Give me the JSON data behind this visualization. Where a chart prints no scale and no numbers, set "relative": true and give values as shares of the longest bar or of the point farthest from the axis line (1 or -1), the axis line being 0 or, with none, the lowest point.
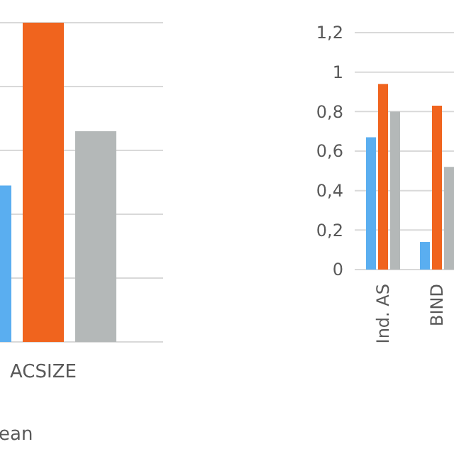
{
  "chart_data": [
    {
      "type": "bar",
      "categories": [
        "ACSIZE"
      ],
      "relative": true,
      "grid": true,
      "series": [
        {
          "color": "#5aaef0",
          "values": [
            0.49
          ]
        },
        {
          "color": "#f0641e",
          "values": [
            1
          ]
        },
        {
          "color": "#b4b8b8",
          "values": [
            0.66
          ]
        }
      ],
      "annotations": [
        "ean"
      ]
    },
    {
      "type": "bar",
      "categories": [
        "Ind. AS",
        "BIND"
      ],
      "ylim": [
        0,
        1.2
      ],
      "yticks": [
        {
          "value": 0,
          "label": "0"
        },
        {
          "value": 0.2,
          "label": "0,2"
        },
        {
          "value": 0.4,
          "label": "0,4"
        },
        {
          "value": 0.6,
          "label": "0,6"
        },
        {
          "value": 0.8,
          "label": "0,8"
        },
        {
          "value": 1,
          "label": "1"
        },
        {
          "value": 1.2,
          "label": "1,2"
        }
      ],
      "grid": true,
      "series": [
        {
          "color": "#5aaef0",
          "values": [
            0.67,
            0.14
          ]
        },
        {
          "color": "#f0641e",
          "values": [
            0.94,
            0.83
          ]
        },
        {
          "color": "#b4b8b8",
          "values": [
            0.8,
            0.52
          ]
        }
      ]
    }
  ]
}
